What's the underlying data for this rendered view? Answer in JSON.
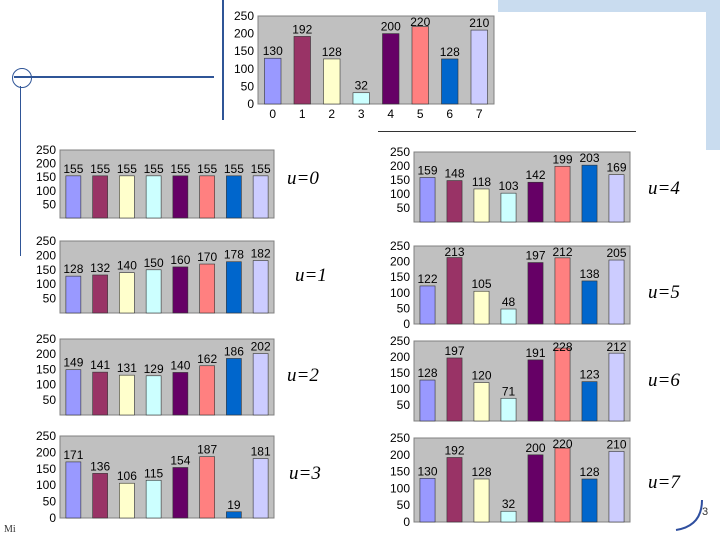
{
  "slide": {
    "number": "3",
    "footer": "Mi",
    "colors": {
      "top_band": "#c9dcef",
      "deco_line": "#2f5597",
      "curve": "#2f4f9f"
    }
  },
  "u_labels": [
    "u=0",
    "u=1",
    "u=2",
    "u=3",
    "u=4",
    "u=5",
    "u=6",
    "u=7"
  ],
  "bar_colors": [
    "#9999ff",
    "#993366",
    "#ffffcc",
    "#ccffff",
    "#660066",
    "#ff8080",
    "#0066cc",
    "#ccccff"
  ],
  "plot_bg": "#c0c0c0",
  "chart_data": [
    {
      "type": "bar",
      "id": "top",
      "categories": [
        "0",
        "1",
        "2",
        "3",
        "4",
        "5",
        "6",
        "7"
      ],
      "values": [
        130,
        192,
        128,
        32,
        200,
        220,
        128,
        210
      ],
      "ylim": [
        0,
        250
      ],
      "yticks": [
        "0",
        "50",
        "100",
        "150",
        "200",
        "250"
      ],
      "show_x_ticks": true
    },
    {
      "type": "bar",
      "id": "u0",
      "categories": [
        "0",
        "1",
        "2",
        "3",
        "4",
        "5",
        "6",
        "7"
      ],
      "values": [
        155,
        155,
        155,
        155,
        155,
        155,
        155,
        155
      ],
      "ylim": [
        0,
        250
      ],
      "yticks": [
        "50",
        "100",
        "150",
        "200",
        "250"
      ],
      "show_x_ticks": false
    },
    {
      "type": "bar",
      "id": "u1",
      "categories": [
        "0",
        "1",
        "2",
        "3",
        "4",
        "5",
        "6",
        "7"
      ],
      "values": [
        128,
        132,
        140,
        150,
        160,
        170,
        178,
        182
      ],
      "ylim": [
        0,
        250
      ],
      "yticks": [
        "50",
        "100",
        "150",
        "200",
        "250"
      ],
      "show_x_ticks": false
    },
    {
      "type": "bar",
      "id": "u2",
      "categories": [
        "0",
        "1",
        "2",
        "3",
        "4",
        "5",
        "6",
        "7"
      ],
      "values": [
        149,
        141,
        131,
        129,
        140,
        162,
        186,
        202
      ],
      "ylim": [
        0,
        250
      ],
      "yticks": [
        "50",
        "100",
        "150",
        "200",
        "250"
      ],
      "show_x_ticks": false
    },
    {
      "type": "bar",
      "id": "u3",
      "categories": [
        "0",
        "1",
        "2",
        "3",
        "4",
        "5",
        "6",
        "7"
      ],
      "values": [
        171,
        136,
        106,
        115,
        154,
        187,
        19,
        181
      ],
      "ylim": [
        0,
        250
      ],
      "yticks": [
        "0",
        "50",
        "100",
        "150",
        "200",
        "250"
      ],
      "show_x_ticks": false
    },
    {
      "type": "bar",
      "id": "u4",
      "categories": [
        "0",
        "1",
        "2",
        "3",
        "4",
        "5",
        "6",
        "7"
      ],
      "values": [
        159,
        148,
        118,
        103,
        142,
        199,
        203,
        169
      ],
      "ylim": [
        0,
        250
      ],
      "yticks": [
        "50",
        "100",
        "150",
        "200",
        "250"
      ],
      "show_x_ticks": false
    },
    {
      "type": "bar",
      "id": "u5",
      "categories": [
        "0",
        "1",
        "2",
        "3",
        "4",
        "5",
        "6",
        "7"
      ],
      "values": [
        122,
        213,
        105,
        48,
        197,
        212,
        138,
        205
      ],
      "ylim": [
        0,
        250
      ],
      "yticks": [
        "0",
        "50",
        "100",
        "150",
        "200",
        "250"
      ],
      "show_x_ticks": false
    },
    {
      "type": "bar",
      "id": "u6",
      "categories": [
        "0",
        "1",
        "2",
        "3",
        "4",
        "5",
        "6",
        "7"
      ],
      "values": [
        128,
        197,
        120,
        71,
        191,
        228,
        123,
        212
      ],
      "ylim": [
        0,
        250
      ],
      "yticks": [
        "50",
        "100",
        "150",
        "200",
        "250"
      ],
      "show_x_ticks": false
    },
    {
      "type": "bar",
      "id": "u7",
      "categories": [
        "0",
        "1",
        "2",
        "3",
        "4",
        "5",
        "6",
        "7"
      ],
      "values": [
        130,
        192,
        128,
        32,
        200,
        220,
        128,
        210
      ],
      "ylim": [
        0,
        250
      ],
      "yticks": [
        "0",
        "50",
        "100",
        "150",
        "200",
        "250"
      ],
      "show_x_ticks": false
    }
  ]
}
